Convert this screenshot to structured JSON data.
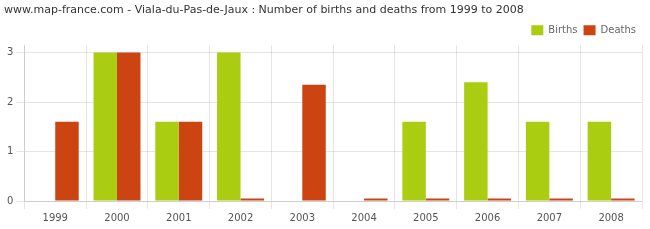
{
  "chart_data": {
    "type": "bar",
    "title": "www.map-france.com - Viala-du-Pas-de-Jaux : Number of births and deaths from 1999 to 2008",
    "categories": [
      "1999",
      "2000",
      "2001",
      "2002",
      "2003",
      "2004",
      "2005",
      "2006",
      "2007",
      "2008"
    ],
    "series": [
      {
        "name": "Births",
        "color": "#aacc11",
        "values": [
          0,
          3,
          1.6,
          3,
          0,
          0,
          1.6,
          2.4,
          1.6,
          1.6
        ]
      },
      {
        "name": "Deaths",
        "color": "#cc4411",
        "values": [
          1.6,
          3,
          1.6,
          0.05,
          2.35,
          0.05,
          0.05,
          0.05,
          0.05,
          0.05
        ]
      }
    ],
    "ylim": [
      0,
      3.15
    ],
    "yticks": [
      0,
      1,
      2,
      3
    ],
    "grid": true,
    "legend": "upper right"
  }
}
